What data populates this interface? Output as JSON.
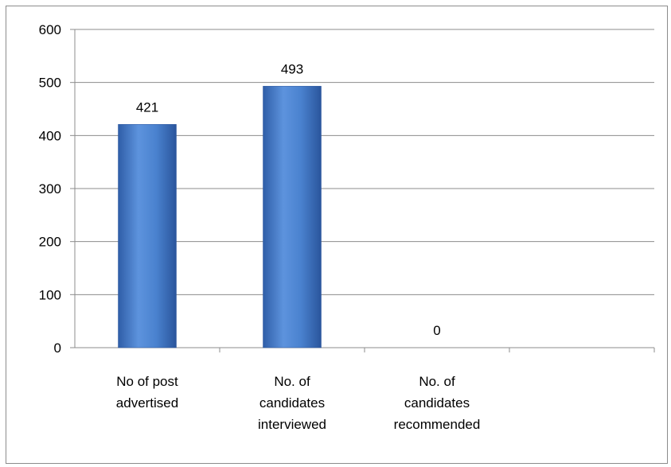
{
  "chart_data": {
    "type": "bar",
    "categories": [
      [
        "No of post",
        "advertised"
      ],
      [
        "No. of",
        "candidates",
        "interviewed"
      ],
      [
        "No. of",
        "candidates",
        "recommended"
      ]
    ],
    "values": [
      421,
      493,
      0
    ],
    "data_labels": [
      "421",
      "493",
      "0"
    ],
    "ylim": [
      0,
      600
    ],
    "yticks": [
      0,
      100,
      200,
      300,
      400,
      500,
      600
    ],
    "grid": true,
    "legend": "none",
    "bar_color": "#4a7ec9"
  }
}
